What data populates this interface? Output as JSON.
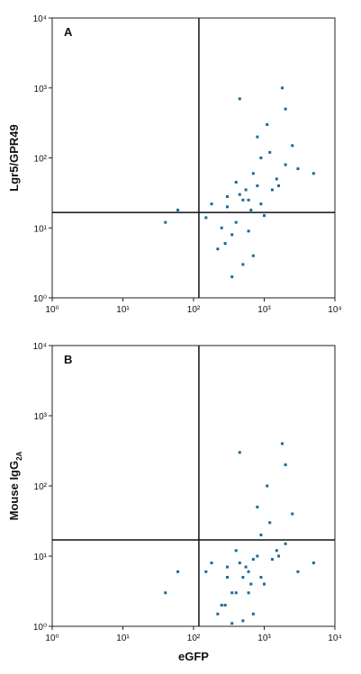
{
  "chart_data": [
    {
      "type": "scatter",
      "panel_label": "A",
      "ylabel": "Lgr5/GPR49",
      "log_x": true,
      "log_y": true,
      "color": "#1b6a96",
      "xlim": [
        1,
        10000
      ],
      "ylim": [
        1,
        10000
      ],
      "xticks": [
        {
          "value": 1,
          "label": "10⁰"
        },
        {
          "value": 10,
          "label": "10¹"
        },
        {
          "value": 100,
          "label": "10²"
        },
        {
          "value": 1000,
          "label": "10³"
        },
        {
          "value": 10000,
          "label": "10⁴"
        }
      ],
      "yticks": [
        {
          "value": 1,
          "label": "10⁰"
        },
        {
          "value": 10,
          "label": "10¹"
        },
        {
          "value": 100,
          "label": "10²"
        },
        {
          "value": 1000,
          "label": "10³"
        },
        {
          "value": 10000,
          "label": "10⁴"
        }
      ],
      "gate_x": 119,
      "gate_y": 16.6,
      "x": [
        300,
        450,
        600,
        800,
        1000,
        1500,
        2000,
        400,
        550,
        700,
        250,
        350,
        900,
        1200,
        3000,
        500,
        650,
        180,
        220,
        280,
        800,
        1100,
        1600,
        2500,
        5000,
        150,
        600,
        700,
        400,
        300,
        900,
        1300,
        2000,
        450,
        500,
        350,
        1000,
        60,
        40,
        1800
      ],
      "y": [
        20,
        30,
        25,
        40,
        15,
        50,
        80,
        12,
        35,
        60,
        10,
        8,
        100,
        120,
        70,
        25,
        18,
        22,
        5,
        6,
        200,
        300,
        40,
        150,
        60,
        14,
        9,
        4,
        45,
        28,
        22,
        35,
        500,
        700,
        3,
        2,
        15,
        18,
        12,
        1000
      ]
    },
    {
      "type": "scatter",
      "panel_label": "B",
      "ylabel": "Mouse IgG",
      "ylabel_sub": "2A",
      "xlabel": "eGFP",
      "log_x": true,
      "log_y": true,
      "color": "#1b6a96",
      "xlim": [
        1,
        10000
      ],
      "ylim": [
        1,
        10000
      ],
      "xticks": [
        {
          "value": 1,
          "label": "10⁰"
        },
        {
          "value": 10,
          "label": "10¹"
        },
        {
          "value": 100,
          "label": "10²"
        },
        {
          "value": 1000,
          "label": "10³"
        },
        {
          "value": 10000,
          "label": "10⁴"
        }
      ],
      "yticks": [
        {
          "value": 1,
          "label": "10⁰"
        },
        {
          "value": 10,
          "label": "10¹"
        },
        {
          "value": 100,
          "label": "10²"
        },
        {
          "value": 1000,
          "label": "10³"
        },
        {
          "value": 10000,
          "label": "10⁴"
        }
      ],
      "gate_x": 119,
      "gate_y": 17,
      "x": [
        300,
        450,
        600,
        800,
        1000,
        1500,
        2000,
        400,
        550,
        700,
        250,
        350,
        900,
        1200,
        3000,
        500,
        650,
        180,
        220,
        280,
        800,
        1100,
        1600,
        2500,
        5000,
        150,
        600,
        700,
        400,
        300,
        900,
        1300,
        2000,
        450,
        500,
        350,
        1000,
        60,
        40,
        1800
      ],
      "y": [
        5,
        8,
        6,
        10,
        4,
        12,
        15,
        3,
        7,
        9,
        2,
        3,
        20,
        30,
        6,
        5,
        4,
        8,
        1.5,
        2,
        50,
        100,
        10,
        40,
        8,
        6,
        3,
        1.5,
        12,
        7,
        5,
        9,
        200,
        300,
        1.2,
        1.1,
        4,
        6,
        3,
        400
      ]
    }
  ]
}
